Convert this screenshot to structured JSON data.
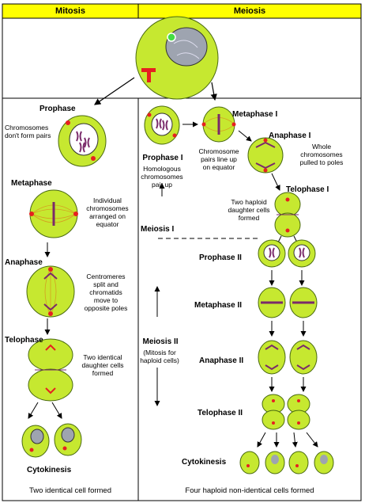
{
  "header": {
    "mitosis": "Mitosis",
    "meiosis": "Meiosis"
  },
  "mitosis": {
    "prophase": {
      "title": "Prophase",
      "note_l1": "Chromosomes",
      "note_l2": "don't form pairs"
    },
    "metaphase": {
      "title": "Metaphase",
      "note_l1": "Individual",
      "note_l2": "chromosomes",
      "note_l3": "arranged on",
      "note_l4": "equator"
    },
    "anaphase": {
      "title": "Anaphase",
      "note_l1": "Centromeres",
      "note_l2": "split and",
      "note_l3": "chromatids",
      "note_l4": "move to",
      "note_l5": "opposite poles"
    },
    "telophase": {
      "title": "Telophase",
      "note_l1": "Two identical",
      "note_l2": "daughter cells",
      "note_l3": "formed"
    },
    "cytokinesis": {
      "title": "Cytokinesis"
    },
    "result": "Two identical cell formed"
  },
  "meiosis": {
    "prophase1": {
      "title": "Prophase I",
      "note_l1": "Homologous",
      "note_l2": "chromosomes",
      "note_l3": "pair up"
    },
    "metaphase1": {
      "title": "Metaphase I",
      "note_l1": "Chromosome",
      "note_l2": "pairs line up",
      "note_l3": "on equator"
    },
    "anaphase1": {
      "title": "Anaphase I",
      "note_l1": "Whole",
      "note_l2": "chromosomes",
      "note_l3": "pulled to poles"
    },
    "telophase1": {
      "title": "Telophase I",
      "note_l1": "Two haploid",
      "note_l2": "daughter cells",
      "note_l3": "formed"
    },
    "phase1_label": "Meiosis I",
    "phase2_label": "Meiosis II",
    "phase2_note_l1": "(Mitosis for",
    "phase2_note_l2": "haploid cells)",
    "prophase2": {
      "title": "Prophase II"
    },
    "metaphase2": {
      "title": "Metaphase II"
    },
    "anaphase2": {
      "title": "Anaphase II"
    },
    "telophase2": {
      "title": "Telophase II"
    },
    "cytokinesis": {
      "title": "Cytokinesis"
    },
    "result": "Four haploid non-identical cells formed"
  },
  "colors": {
    "cell_fill": "#c6e830",
    "cell_stroke": "#4a6a10",
    "nucleus": "#9ea4b0",
    "chromosome": "#7a2a6a",
    "centriole": "#e62020",
    "spindle": "#d4a020",
    "header_bg": "#ffff00"
  }
}
